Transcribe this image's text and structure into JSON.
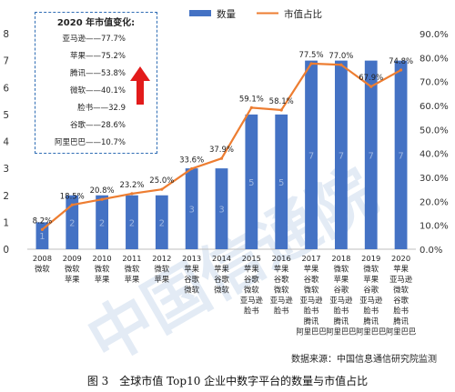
{
  "chart_data": {
    "type": "bar+line",
    "categories": [
      "2008",
      "2009",
      "2010",
      "2011",
      "2012",
      "2013",
      "2014",
      "2015",
      "2016",
      "2017",
      "2018",
      "2019",
      "2020"
    ],
    "category_labels": [
      [
        "2008",
        "微软"
      ],
      [
        "2009",
        "微软",
        "苹果"
      ],
      [
        "2010",
        "微软",
        "苹果"
      ],
      [
        "2011",
        "微软",
        "苹果"
      ],
      [
        "2012",
        "微软",
        "苹果"
      ],
      [
        "2013",
        "苹果",
        "谷歌",
        "微软"
      ],
      [
        "2014",
        "苹果",
        "谷歌",
        "微软"
      ],
      [
        "2015",
        "苹果",
        "谷歌",
        "微软",
        "亚马逊",
        "脸书"
      ],
      [
        "2016",
        "苹果",
        "谷歌",
        "微软",
        "亚马逊",
        "脸书"
      ],
      [
        "2017",
        "苹果",
        "谷歌",
        "微软",
        "亚马逊",
        "脸书",
        "腾讯",
        "阿里巴巴"
      ],
      [
        "2018",
        "微软",
        "苹果",
        "谷歌",
        "亚马逊",
        "脸书",
        "腾讯",
        "阿里巴巴"
      ],
      [
        "2019",
        "微软",
        "苹果",
        "谷歌",
        "亚马逊",
        "脸书",
        "腾讯",
        "阿里巴巴"
      ],
      [
        "2020",
        "苹果",
        "亚马逊",
        "微软",
        "谷歌",
        "脸书",
        "腾讯",
        "阿里巴巴"
      ]
    ],
    "series": [
      {
        "name": "数量",
        "type": "bar",
        "axis": "left",
        "values": [
          1,
          2,
          2,
          2,
          2,
          3,
          3,
          5,
          5,
          7,
          7,
          7,
          7
        ],
        "labels": [
          "1",
          "2",
          "2",
          "2",
          "2",
          "3",
          "3",
          "5",
          "5",
          "7",
          "7",
          "7",
          "7"
        ]
      },
      {
        "name": "市值占比",
        "type": "line",
        "axis": "right",
        "values": [
          8.2,
          18.5,
          20.8,
          23.2,
          25.0,
          33.6,
          37.9,
          59.1,
          58.1,
          77.5,
          77.0,
          67.9,
          74.8
        ],
        "labels": [
          "8.2%",
          "18.5%",
          "20.8%",
          "23.2%",
          "25.0%",
          "33.6%",
          "37.9%",
          "59.1%",
          "58.1%",
          "77.5%",
          "77.0%",
          "67.9%",
          "74.8%"
        ]
      }
    ],
    "left_ticks": [
      "0",
      "1",
      "2",
      "3",
      "4",
      "5",
      "6",
      "7",
      "8"
    ],
    "right_ticks": [
      "0.0%",
      "10.0%",
      "20.0%",
      "30.0%",
      "40.0%",
      "50.0%",
      "60.0%",
      "70.0%",
      "80.0%",
      "90.0%"
    ],
    "ylim": [
      0,
      8
    ],
    "y2lim": [
      0,
      90
    ],
    "grid": false,
    "legend_position": "top-right",
    "colors": {
      "bar": "#4472c4",
      "line": "#ed7d31"
    }
  },
  "inset": {
    "title": "2020 年市值变化:",
    "rows": [
      "亚马逊——77.7%",
      "苹果——75.2%",
      "腾讯——53.8%",
      "微软——40.1%",
      "脸书——32.9",
      "谷歌——28.6%",
      "阿里巴巴——10.7%"
    ],
    "arrow_color": "#e21b1b"
  },
  "source": "数据来源：中国信息通信研究院监测",
  "caption": "图 3　全球市值 Top10 企业中数字平台的数量与市值占比"
}
